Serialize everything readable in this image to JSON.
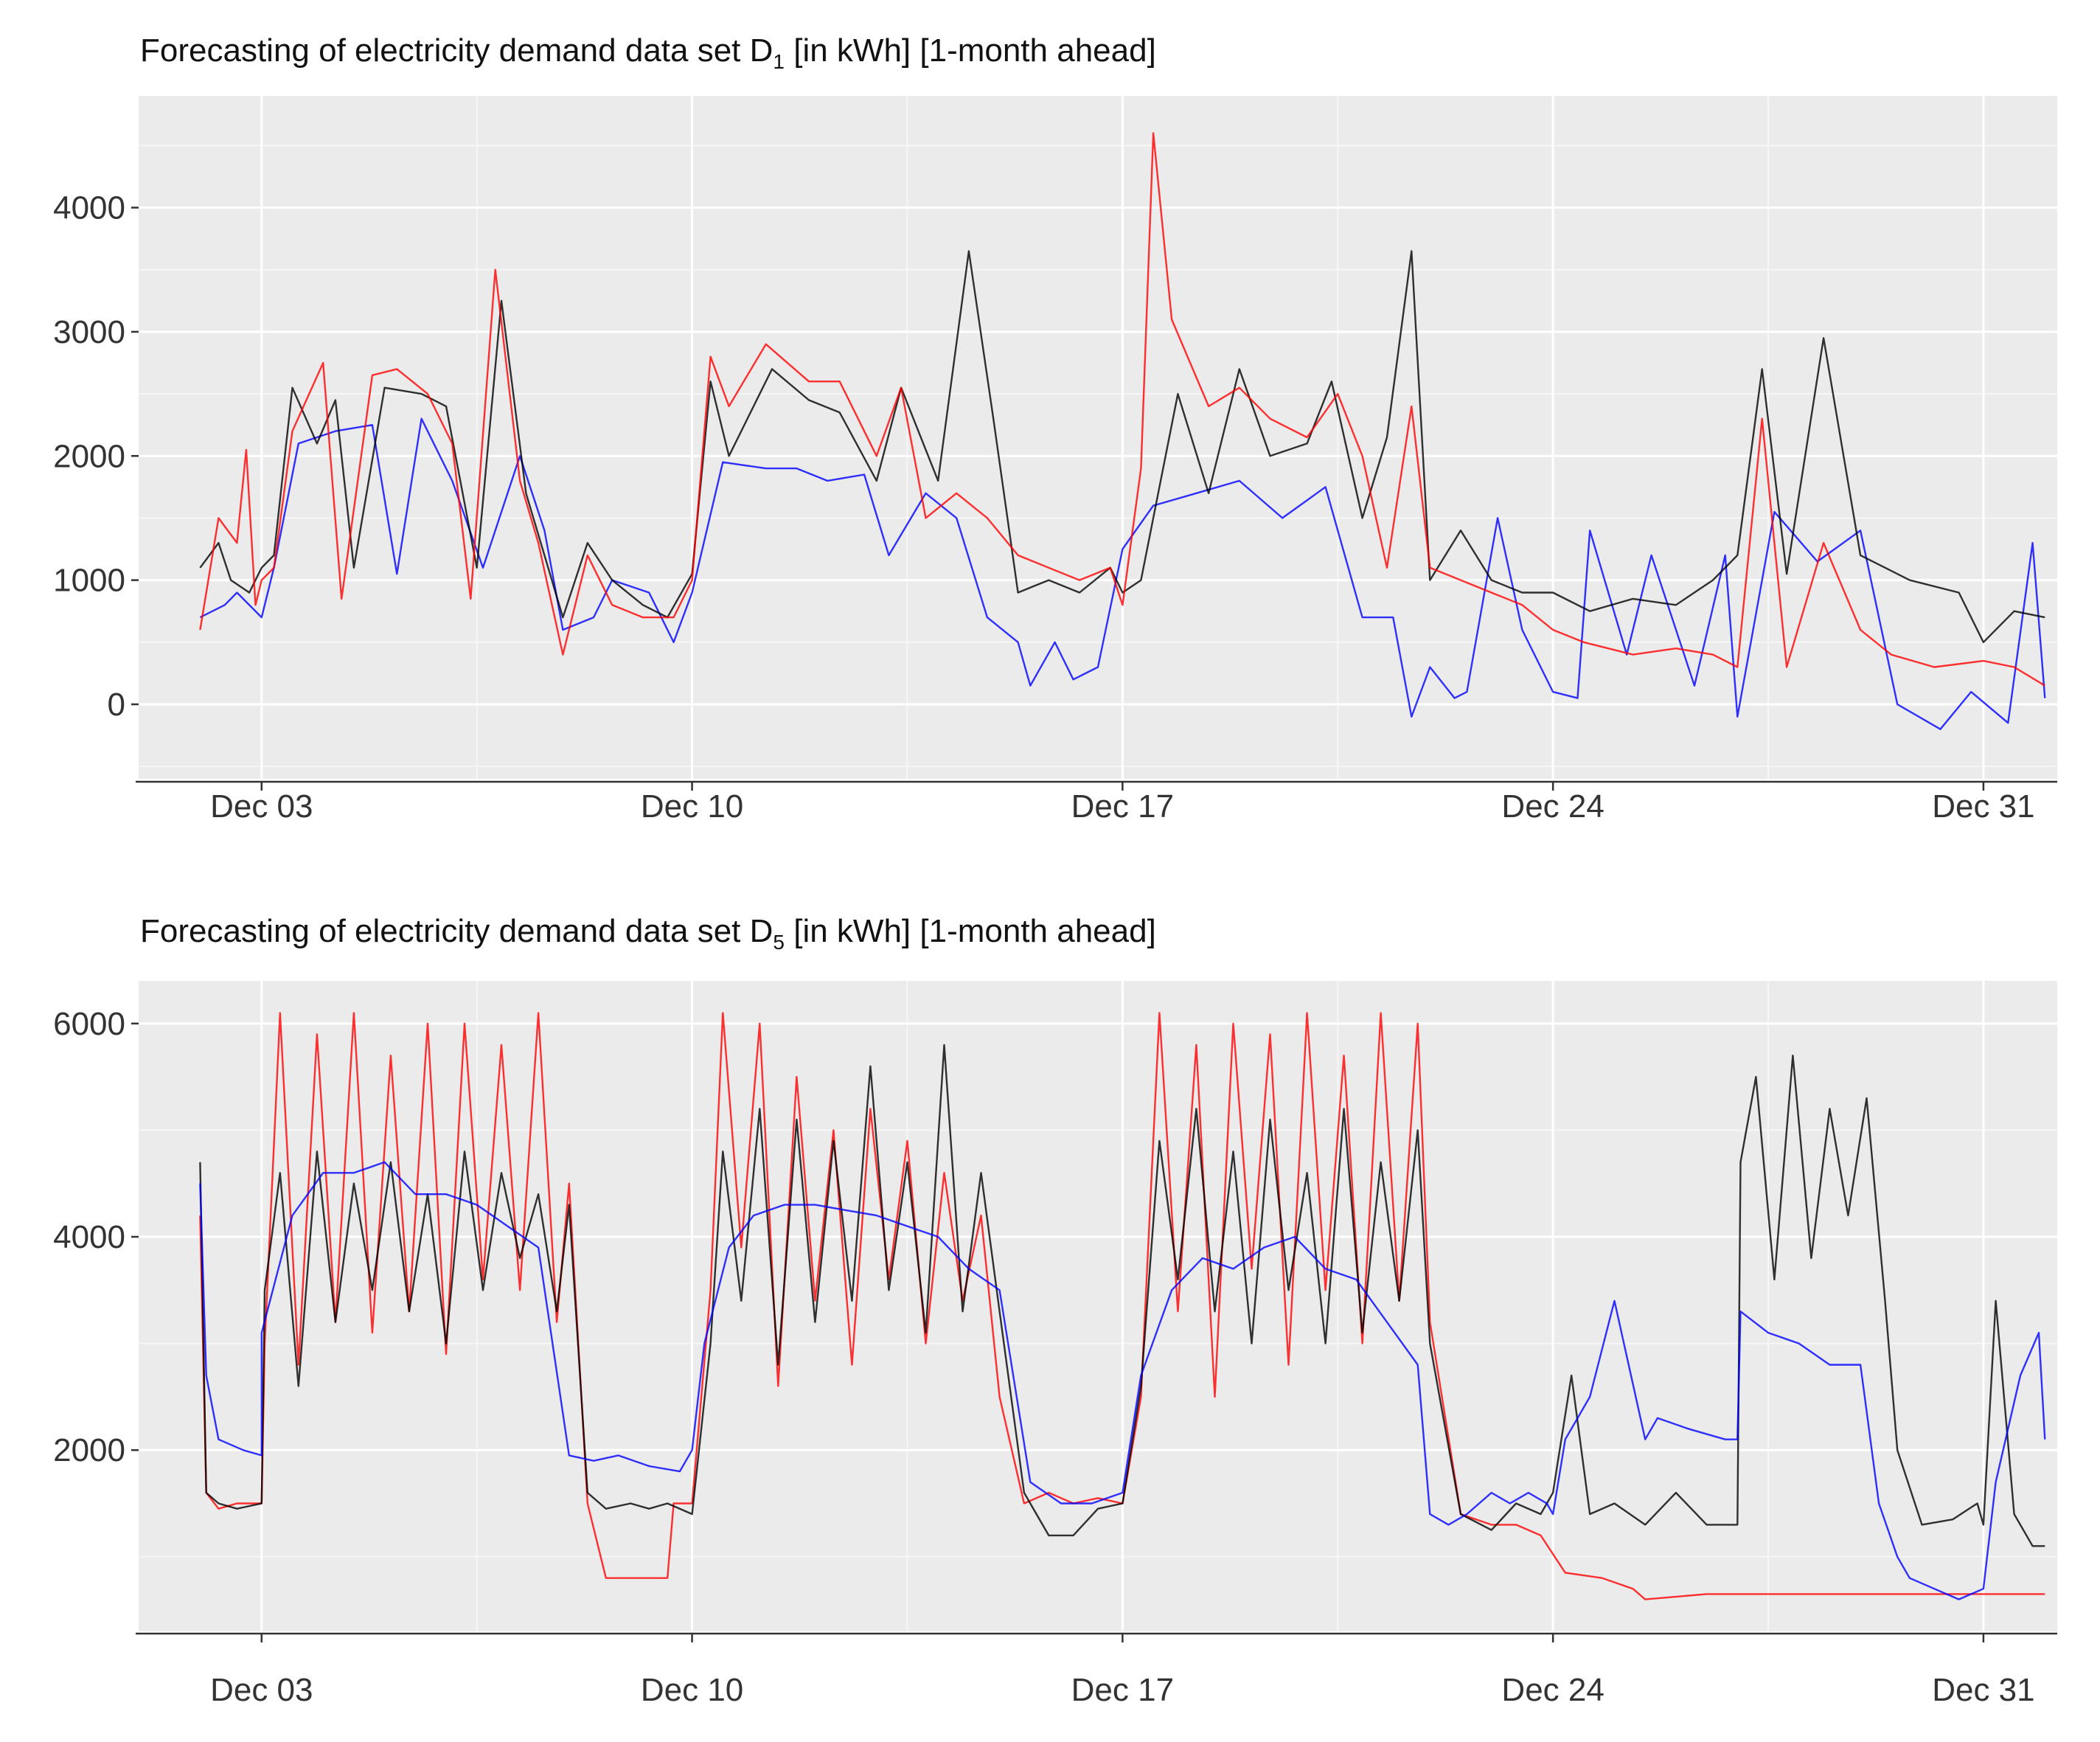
{
  "chart_data": [
    {
      "type": "line",
      "title": "Forecasting of electricity demand data set D",
      "title_subscript": "1",
      "title_suffix": " [in kWh] [1-month ahead]",
      "xlabel": "",
      "ylabel": "",
      "x_unit": "day of December",
      "xlim": [
        1.0,
        32.2
      ],
      "ylim": [
        -600,
        4900
      ],
      "x_tick_values": [
        3,
        10,
        17,
        24,
        31
      ],
      "x_tick_labels": [
        "Dec 03",
        "Dec 10",
        "Dec 17",
        "Dec 24",
        "Dec 31"
      ],
      "y_tick_values": [
        0,
        1000,
        2000,
        3000,
        4000
      ],
      "y_tick_labels": [
        "0",
        "1000",
        "2000",
        "3000",
        "4000"
      ],
      "grid": true,
      "background": "#ebebeb",
      "series": [
        {
          "color": "#0000ff",
          "x": [
            2.0,
            2.4,
            2.6,
            3.0,
            3.2,
            3.6,
            4.2,
            4.8,
            5.2,
            5.6,
            6.1,
            6.6,
            7.2,
            7.6,
            7.9,
            8.4,
            8.7,
            9.3,
            9.7,
            10.0,
            10.5,
            11.2,
            11.7,
            12.2,
            12.8,
            13.2,
            13.8,
            14.3,
            14.8,
            15.3,
            15.5,
            15.9,
            16.2,
            16.6,
            17.0,
            17.5,
            18.2,
            18.9,
            19.6,
            20.3,
            20.9,
            21.4,
            21.7,
            22.0,
            22.4,
            22.6,
            23.1,
            23.5,
            24.0,
            24.4,
            24.6,
            25.2,
            25.6,
            26.3,
            26.8,
            27.0,
            27.6,
            28.3,
            29.0,
            29.6,
            30.3,
            30.8,
            31.4,
            31.8,
            32.0
          ],
          "values": [
            700,
            800,
            900,
            700,
            1100,
            2100,
            2200,
            2250,
            1050,
            2300,
            1800,
            1100,
            2000,
            1400,
            600,
            700,
            1000,
            900,
            500,
            900,
            1950,
            1900,
            1900,
            1800,
            1850,
            1200,
            1700,
            1500,
            700,
            500,
            150,
            500,
            200,
            300,
            1250,
            1600,
            1700,
            1800,
            1500,
            1750,
            700,
            700,
            -100,
            300,
            50,
            100,
            1500,
            600,
            100,
            50,
            1400,
            400,
            1200,
            150,
            1200,
            -100,
            1550,
            1150,
            1400,
            0,
            -200,
            100,
            -150,
            1300,
            50
          ]
        },
        {
          "color": "#000000",
          "x": [
            2.0,
            2.3,
            2.5,
            2.8,
            3.0,
            3.2,
            3.5,
            3.9,
            4.2,
            4.5,
            5.0,
            5.6,
            6.0,
            6.5,
            6.9,
            7.3,
            7.6,
            7.9,
            8.3,
            8.7,
            9.2,
            9.6,
            10.0,
            10.3,
            10.6,
            11.3,
            11.9,
            12.4,
            13.0,
            13.4,
            14.0,
            14.5,
            14.9,
            15.3,
            15.8,
            16.3,
            16.8,
            17.0,
            17.3,
            17.9,
            18.4,
            18.9,
            19.4,
            20.0,
            20.4,
            20.9,
            21.3,
            21.7,
            22.0,
            22.5,
            23.0,
            23.5,
            24.0,
            24.6,
            25.3,
            26.0,
            26.6,
            27.0,
            27.4,
            27.8,
            28.4,
            29.0,
            29.8,
            30.6,
            31.0,
            31.5,
            32.0
          ],
          "values": [
            1100,
            1300,
            1000,
            900,
            1100,
            1200,
            2550,
            2100,
            2450,
            1100,
            2550,
            2500,
            2400,
            1100,
            3250,
            1700,
            1200,
            700,
            1300,
            1000,
            800,
            700,
            1050,
            2600,
            2000,
            2700,
            2450,
            2350,
            1800,
            2550,
            1800,
            3650,
            2300,
            900,
            1000,
            900,
            1100,
            900,
            1000,
            2500,
            1700,
            2700,
            2000,
            2100,
            2600,
            1500,
            2150,
            3650,
            1000,
            1400,
            1000,
            900,
            900,
            750,
            850,
            800,
            1000,
            1200,
            2700,
            1050,
            2950,
            1200,
            1000,
            900,
            500,
            750,
            700
          ]
        },
        {
          "color": "#ff0000",
          "x": [
            2.0,
            2.3,
            2.6,
            2.75,
            2.9,
            3.0,
            3.2,
            3.5,
            4.0,
            4.3,
            4.8,
            5.2,
            5.7,
            6.1,
            6.4,
            6.8,
            7.2,
            7.5,
            7.9,
            8.3,
            8.7,
            9.2,
            9.7,
            10.0,
            10.3,
            10.6,
            11.2,
            11.9,
            12.4,
            13.0,
            13.4,
            13.8,
            14.3,
            14.8,
            15.3,
            15.8,
            16.3,
            16.8,
            17.0,
            17.3,
            17.5,
            17.8,
            18.4,
            18.9,
            19.4,
            20.0,
            20.5,
            20.9,
            21.3,
            21.7,
            22.0,
            22.5,
            23.0,
            23.5,
            24.0,
            24.5,
            25.3,
            26.0,
            26.6,
            27.0,
            27.4,
            27.8,
            28.4,
            29.0,
            29.5,
            30.2,
            31.0,
            31.5,
            32.0
          ],
          "values": [
            600,
            1500,
            1300,
            2050,
            800,
            1000,
            1100,
            2200,
            2750,
            850,
            2650,
            2700,
            2500,
            2100,
            850,
            3500,
            1800,
            1300,
            400,
            1200,
            800,
            700,
            700,
            1000,
            2800,
            2400,
            2900,
            2600,
            2600,
            2000,
            2550,
            1500,
            1700,
            1500,
            1200,
            1100,
            1000,
            1100,
            800,
            1900,
            4600,
            3100,
            2400,
            2550,
            2300,
            2150,
            2500,
            2000,
            1100,
            2400,
            1100,
            1000,
            900,
            800,
            600,
            500,
            400,
            450,
            400,
            300,
            2300,
            300,
            1300,
            600,
            400,
            300,
            350,
            300,
            150
          ]
        }
      ]
    },
    {
      "type": "line",
      "title": "Forecasting of electricity demand data set D",
      "title_subscript": "5",
      "title_suffix": " [in kWh] [1-month ahead]",
      "xlabel": "",
      "ylabel": "",
      "x_unit": "day of December",
      "xlim": [
        1.0,
        32.2
      ],
      "ylim": [
        300,
        6400
      ],
      "x_tick_values": [
        3,
        10,
        17,
        24,
        31
      ],
      "x_tick_labels": [
        "Dec 03",
        "Dec 10",
        "Dec 17",
        "Dec 24",
        "Dec 31"
      ],
      "y_tick_values": [
        2000,
        4000,
        6000
      ],
      "y_tick_labels": [
        "2000",
        "4000",
        "6000"
      ],
      "grid": true,
      "background": "#ebebeb",
      "series": [
        {
          "color": "#ff0000",
          "x": [
            2.0,
            2.1,
            2.3,
            2.6,
            3.0,
            3.05,
            3.3,
            3.6,
            3.9,
            4.2,
            4.5,
            4.8,
            5.1,
            5.4,
            5.7,
            6.0,
            6.3,
            6.6,
            6.9,
            7.2,
            7.5,
            7.8,
            8.0,
            8.3,
            8.6,
            9.0,
            9.3,
            9.6,
            9.7,
            10.0,
            10.3,
            10.5,
            10.8,
            11.1,
            11.4,
            11.7,
            12.0,
            12.3,
            12.6,
            12.9,
            13.2,
            13.5,
            13.8,
            14.1,
            14.4,
            14.7,
            15.0,
            15.4,
            15.8,
            16.2,
            16.6,
            17.0,
            17.3,
            17.6,
            17.9,
            18.2,
            18.5,
            18.8,
            19.1,
            19.4,
            19.7,
            20.0,
            20.3,
            20.6,
            20.9,
            21.2,
            21.5,
            21.8,
            22.0,
            22.5,
            23.0,
            23.4,
            23.8,
            24.2,
            24.8,
            25.3,
            25.5,
            26.5,
            27.5,
            28.5,
            29.5,
            30.5,
            31.5,
            32.0
          ],
          "values": [
            4200,
            1600,
            1450,
            1500,
            1500,
            3000,
            6100,
            2800,
            5900,
            3200,
            6100,
            3100,
            5700,
            3300,
            6000,
            2900,
            6000,
            3600,
            5800,
            3500,
            6100,
            3200,
            4500,
            1500,
            800,
            800,
            800,
            800,
            1500,
            1500,
            3500,
            6100,
            3900,
            6000,
            2600,
            5500,
            3400,
            5000,
            2800,
            5200,
            3600,
            4900,
            3000,
            4600,
            3400,
            4200,
            2500,
            1500,
            1600,
            1500,
            1550,
            1500,
            2500,
            6100,
            3300,
            5800,
            2500,
            6000,
            3700,
            5900,
            2800,
            6100,
            3500,
            5700,
            3000,
            6100,
            3400,
            6000,
            3200,
            1400,
            1300,
            1300,
            1200,
            850,
            800,
            700,
            600,
            650,
            650,
            650,
            650,
            650,
            650,
            650
          ]
        },
        {
          "color": "#000000",
          "x": [
            2.0,
            2.1,
            2.3,
            2.6,
            3.0,
            3.05,
            3.3,
            3.6,
            3.9,
            4.2,
            4.5,
            4.8,
            5.1,
            5.4,
            5.7,
            6.0,
            6.3,
            6.6,
            6.9,
            7.2,
            7.5,
            7.8,
            8.0,
            8.3,
            8.6,
            9.0,
            9.3,
            9.6,
            10.0,
            10.3,
            10.5,
            10.8,
            11.1,
            11.4,
            11.7,
            12.0,
            12.3,
            12.6,
            12.9,
            13.2,
            13.5,
            13.8,
            14.1,
            14.4,
            14.7,
            15.0,
            15.4,
            15.8,
            16.2,
            16.6,
            17.0,
            17.3,
            17.6,
            17.9,
            18.2,
            18.5,
            18.8,
            19.1,
            19.4,
            19.7,
            20.0,
            20.3,
            20.6,
            20.9,
            21.2,
            21.5,
            21.8,
            22.0,
            22.5,
            23.0,
            23.4,
            23.8,
            24.0,
            24.3,
            24.6,
            25.0,
            25.5,
            26.0,
            26.5,
            27.0,
            27.05,
            27.3,
            27.6,
            27.9,
            28.2,
            28.5,
            28.8,
            29.1,
            29.4,
            29.6,
            30.0,
            30.5,
            30.9,
            31.0,
            31.2,
            31.5,
            31.8,
            32.0
          ],
          "values": [
            4700,
            1600,
            1500,
            1450,
            1500,
            3500,
            4600,
            2600,
            4800,
            3200,
            4500,
            3500,
            4700,
            3300,
            4400,
            3000,
            4800,
            3500,
            4600,
            3800,
            4400,
            3300,
            4300,
            1600,
            1450,
            1500,
            1450,
            1500,
            1400,
            3000,
            4800,
            3400,
            5200,
            2800,
            5100,
            3200,
            4900,
            3400,
            5600,
            3500,
            4700,
            3100,
            5800,
            3300,
            4600,
            3300,
            1600,
            1200,
            1200,
            1450,
            1500,
            2600,
            4900,
            3600,
            5200,
            3300,
            4800,
            3000,
            5100,
            3500,
            4600,
            3000,
            5200,
            3100,
            4700,
            3400,
            5000,
            3000,
            1400,
            1250,
            1500,
            1400,
            1600,
            2700,
            1400,
            1500,
            1300,
            1600,
            1300,
            1300,
            4700,
            5500,
            3600,
            5700,
            3800,
            5200,
            4200,
            5300,
            3400,
            2000,
            1300,
            1350,
            1500,
            1300,
            3400,
            1400,
            1100,
            1100
          ]
        },
        {
          "color": "#0000ff",
          "x": [
            2.0,
            2.1,
            2.3,
            2.7,
            3.0,
            3.0,
            3.5,
            4.0,
            4.5,
            5.0,
            5.5,
            6.0,
            6.5,
            7.0,
            7.5,
            8.0,
            8.4,
            8.8,
            9.3,
            9.8,
            10.0,
            10.2,
            10.6,
            11.0,
            11.5,
            12.0,
            12.5,
            13.0,
            13.5,
            14.0,
            14.5,
            15.0,
            15.5,
            16.0,
            16.5,
            17.0,
            17.3,
            17.8,
            18.3,
            18.8,
            19.3,
            19.8,
            20.3,
            20.8,
            21.3,
            21.8,
            22.0,
            22.3,
            22.6,
            23.0,
            23.3,
            23.6,
            23.9,
            24.0,
            24.2,
            24.6,
            25.0,
            25.5,
            25.7,
            26.2,
            26.8,
            27.0,
            27.05,
            27.5,
            28.0,
            28.5,
            29.0,
            29.3,
            29.6,
            29.8,
            30.2,
            30.6,
            31.0,
            31.2,
            31.6,
            31.9,
            32.0
          ],
          "values": [
            4500,
            2700,
            2100,
            2000,
            1950,
            3100,
            4200,
            4600,
            4600,
            4700,
            4400,
            4400,
            4300,
            4100,
            3900,
            1950,
            1900,
            1950,
            1850,
            1800,
            2000,
            3000,
            3900,
            4200,
            4300,
            4300,
            4250,
            4200,
            4100,
            4000,
            3700,
            3500,
            1700,
            1500,
            1500,
            1600,
            2700,
            3500,
            3800,
            3700,
            3900,
            4000,
            3700,
            3600,
            3200,
            2800,
            1400,
            1300,
            1400,
            1600,
            1500,
            1600,
            1500,
            1400,
            2100,
            2500,
            3400,
            2100,
            2300,
            2200,
            2100,
            2100,
            3300,
            3100,
            3000,
            2800,
            2800,
            1500,
            1000,
            800,
            700,
            600,
            700,
            1700,
            2700,
            3100,
            2100
          ]
        }
      ]
    }
  ]
}
